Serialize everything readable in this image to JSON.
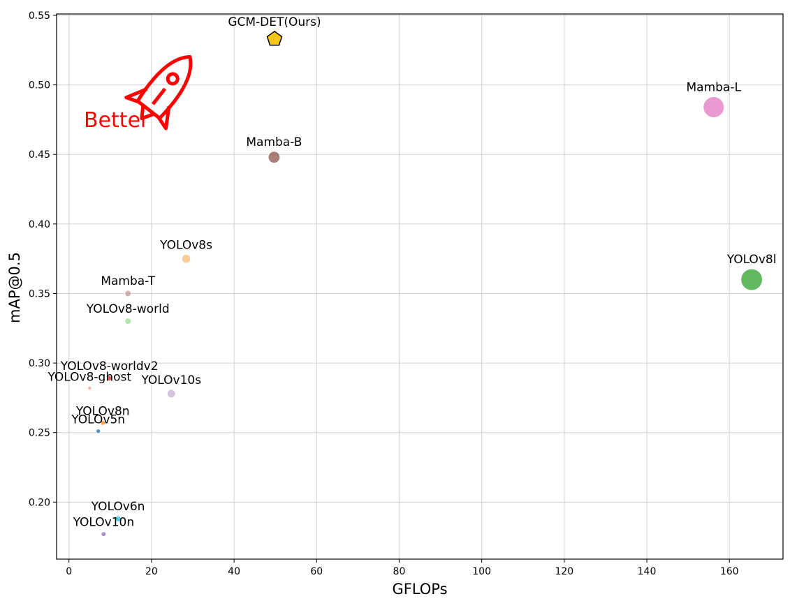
{
  "chart_data": {
    "type": "scatter",
    "title": "",
    "xlabel": "GFLOPs",
    "ylabel": "mAP@0.5",
    "xlim": [
      -3,
      173
    ],
    "ylim": [
      0.159,
      0.551
    ],
    "xticks": [
      0,
      20,
      40,
      60,
      80,
      100,
      120,
      140,
      160
    ],
    "yticks": [
      0.2,
      0.25,
      0.3,
      0.35,
      0.4,
      0.45,
      0.5,
      0.55
    ],
    "grid": true,
    "annotation": "Better",
    "points": [
      {
        "label": "GCM-DET(Ours)",
        "x": 49.8,
        "y": 0.533,
        "color": "#f5c518",
        "marker": "pentagon"
      },
      {
        "label": "Mamba-L",
        "x": 156.2,
        "y": 0.484,
        "color": "#e377c2",
        "marker": "circle"
      },
      {
        "label": "Mamba-B",
        "x": 49.7,
        "y": 0.448,
        "color": "#8c564b",
        "marker": "circle"
      },
      {
        "label": "YOLOv8s",
        "x": 28.4,
        "y": 0.375,
        "color": "#ffbb78",
        "marker": "circle"
      },
      {
        "label": "YOLOv8l",
        "x": 165.4,
        "y": 0.36,
        "color": "#2ca02c",
        "marker": "circle"
      },
      {
        "label": "Mamba-T",
        "x": 14.3,
        "y": 0.35,
        "color": "#c49c94",
        "marker": "circle"
      },
      {
        "label": "YOLOv8-world",
        "x": 14.3,
        "y": 0.33,
        "color": "#98df8a",
        "marker": "circle"
      },
      {
        "label": "YOLOv8-worldv2",
        "x": 9.8,
        "y": 0.289,
        "color": "#d62728",
        "marker": "circle"
      },
      {
        "label": "YOLOv8-ghost",
        "x": 5.0,
        "y": 0.282,
        "color": "#ff9896",
        "marker": "circle"
      },
      {
        "label": "YOLOv10s",
        "x": 24.8,
        "y": 0.278,
        "color": "#c5b0d5",
        "marker": "circle"
      },
      {
        "label": "YOLOv8n",
        "x": 8.2,
        "y": 0.257,
        "color": "#ff7f0e",
        "marker": "circle"
      },
      {
        "label": "YOLOv5n",
        "x": 7.1,
        "y": 0.251,
        "color": "#1f77b4",
        "marker": "circle"
      },
      {
        "label": "YOLOv6n",
        "x": 11.9,
        "y": 0.188,
        "color": "#17becf",
        "marker": "circle"
      },
      {
        "label": "YOLOv10n",
        "x": 8.4,
        "y": 0.177,
        "color": "#9467bd",
        "marker": "circle"
      }
    ]
  }
}
